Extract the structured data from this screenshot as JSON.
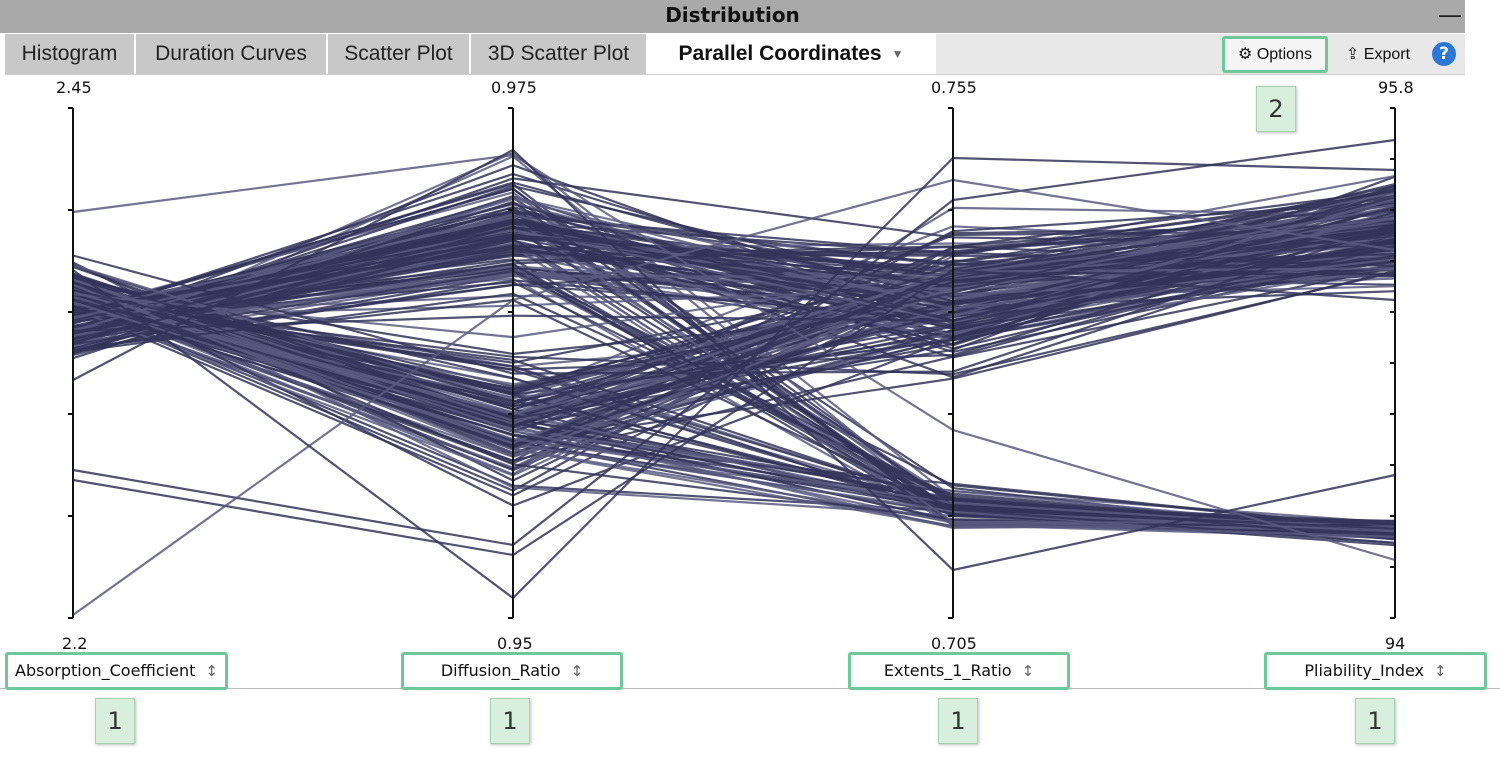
{
  "window": {
    "title": "Distribution",
    "minimize_glyph": "—"
  },
  "tabs": [
    {
      "label": "Histogram",
      "active": false
    },
    {
      "label": "Duration Curves",
      "active": false
    },
    {
      "label": "Scatter Plot",
      "active": false
    },
    {
      "label": "3D Scatter Plot",
      "active": false
    },
    {
      "label": "Parallel Coordinates",
      "active": true
    }
  ],
  "toolbar": {
    "options_label": "Options",
    "export_label": "Export",
    "help_glyph": "?"
  },
  "callouts": {
    "options": "2",
    "axes": "1"
  },
  "colors": {
    "line": "#34345a",
    "line_light": "#5a5a80",
    "highlight": "#6fc89a",
    "titlebar": "#a9a9a9"
  },
  "chart_data": {
    "type": "parallel-coordinates",
    "axes": [
      {
        "name": "Absorption_Coefficient",
        "max": "2.45",
        "min": "2.2",
        "range": [
          2.2,
          2.45
        ]
      },
      {
        "name": "Diffusion_Ratio",
        "max": "0.975",
        "min": "0.95",
        "range": [
          0.95,
          0.975
        ]
      },
      {
        "name": "Extents_1_Ratio",
        "max": "0.755",
        "min": "0.705",
        "range": [
          0.705,
          0.755
        ]
      },
      {
        "name": "Pliability_Index",
        "max": "95.8",
        "min": "94",
        "range": [
          94,
          95.8
        ]
      }
    ],
    "line_count": "approx. 300 (overlapping)",
    "grid": false
  }
}
